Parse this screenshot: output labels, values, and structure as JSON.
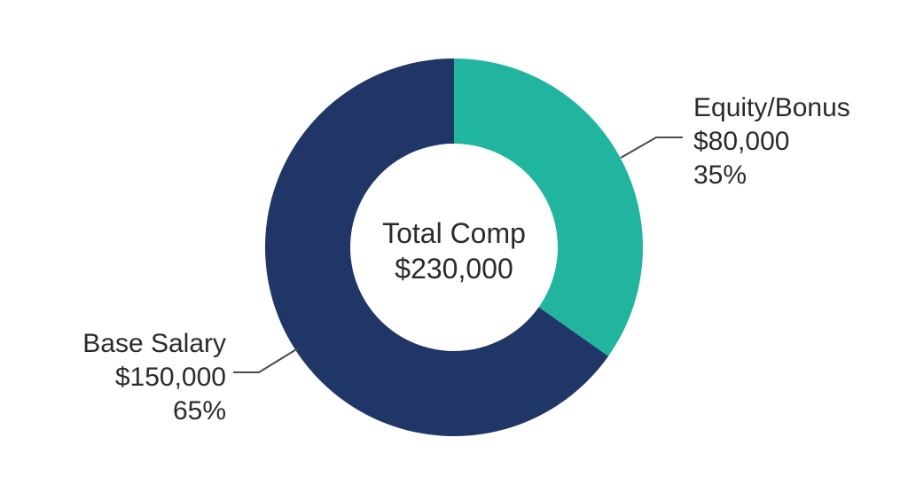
{
  "chart_data": {
    "type": "pie",
    "variant": "donut",
    "title": "",
    "center_label": {
      "line1": "Total Comp",
      "line2": "$230,000"
    },
    "total": 230000,
    "slices": [
      {
        "name": "Equity/Bonus",
        "value": 80000,
        "value_label": "$80,000",
        "percent": 35,
        "percent_label": "35%",
        "color": "#21b5a0"
      },
      {
        "name": "Base Salary",
        "value": 150000,
        "value_label": "$150,000",
        "percent": 65,
        "percent_label": "65%",
        "color": "#1f3667"
      }
    ],
    "legend": "none",
    "grid": false
  }
}
